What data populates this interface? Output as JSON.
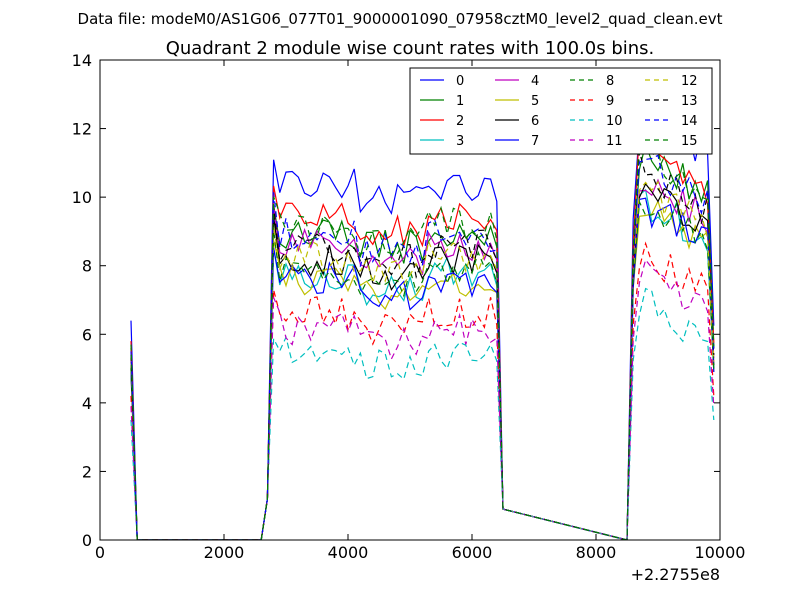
{
  "header": {
    "suptitle": "Data file: modeM0/AS1G06_077T01_9000001090_07958cztM0_level2_quad_clean.evt"
  },
  "chart_data": {
    "type": "line",
    "title": "Quadrant 2 module wise count rates with 100.0s bins.",
    "xlabel": "",
    "ylabel": "",
    "xlim": [
      0,
      10000
    ],
    "ylim": [
      0,
      14
    ],
    "x_offset_label": "+2.2755e8",
    "xticks": [
      0,
      2000,
      4000,
      6000,
      8000,
      10000
    ],
    "xtick_labels": [
      "0",
      "2000",
      "4000",
      "6000",
      "8000",
      "10000"
    ],
    "yticks": [
      0,
      2,
      4,
      6,
      8,
      10,
      12,
      14
    ],
    "ytick_labels": [
      "0",
      "2",
      "4",
      "6",
      "8",
      "10",
      "12",
      "14"
    ],
    "grid": false,
    "legend": {
      "placement": "top-right",
      "columns": 4
    },
    "x": [
      500,
      600,
      2600,
      2700,
      2800,
      2900,
      3000,
      3100,
      3200,
      3300,
      3400,
      3500,
      3600,
      3700,
      3800,
      3900,
      4000,
      4100,
      4200,
      4300,
      4400,
      4500,
      4600,
      4700,
      4800,
      4900,
      5000,
      5100,
      5200,
      5300,
      5400,
      5500,
      5600,
      5700,
      5800,
      5900,
      6000,
      6100,
      6200,
      6300,
      6400,
      6500,
      8500,
      8600,
      8700,
      8800,
      8900,
      9000,
      9100,
      9200,
      9300,
      9400,
      9500,
      9600,
      9700,
      9800,
      9900
    ],
    "series": [
      {
        "name": "0",
        "color": "#0000ff",
        "dash": "solid",
        "plateau1": 10.4,
        "plateau2": 12.5,
        "spike": 6.4
      },
      {
        "name": "1",
        "color": "#008000",
        "dash": "solid",
        "plateau1": 9.0,
        "plateau2": 11.2,
        "spike": 5.6
      },
      {
        "name": "2",
        "color": "#ff0000",
        "dash": "solid",
        "plateau1": 9.5,
        "plateau2": 11.5,
        "spike": 5.8
      },
      {
        "name": "3",
        "color": "#00bfbf",
        "dash": "solid",
        "plateau1": 7.8,
        "plateau2": 10.0,
        "spike": 5.0
      },
      {
        "name": "4",
        "color": "#bf00bf",
        "dash": "solid",
        "plateau1": 8.6,
        "plateau2": 10.6,
        "spike": 5.3
      },
      {
        "name": "5",
        "color": "#bfbf00",
        "dash": "solid",
        "plateau1": 7.6,
        "plateau2": 9.8,
        "spike": 4.8
      },
      {
        "name": "6",
        "color": "#000000",
        "dash": "solid",
        "plateau1": 8.2,
        "plateau2": 10.2,
        "spike": 5.2
      },
      {
        "name": "7",
        "color": "#0000ff",
        "dash": "solid",
        "plateau1": 7.6,
        "plateau2": 9.8,
        "spike": 4.9
      },
      {
        "name": "8",
        "color": "#008000",
        "dash": "dashed",
        "plateau1": 7.9,
        "plateau2": 10.0,
        "spike": 5.0
      },
      {
        "name": "9",
        "color": "#ff0000",
        "dash": "dashed",
        "plateau1": 6.6,
        "plateau2": 8.4,
        "spike": 4.2
      },
      {
        "name": "10",
        "color": "#00bfbf",
        "dash": "dashed",
        "plateau1": 5.5,
        "plateau2": 7.0,
        "spike": 3.5
      },
      {
        "name": "11",
        "color": "#bf00bf",
        "dash": "dashed",
        "plateau1": 6.2,
        "plateau2": 7.8,
        "spike": 3.9
      },
      {
        "name": "12",
        "color": "#bfbf00",
        "dash": "dashed",
        "plateau1": 8.3,
        "plateau2": 10.4,
        "spike": 5.2
      },
      {
        "name": "13",
        "color": "#000000",
        "dash": "dashed",
        "plateau1": 8.6,
        "plateau2": 10.8,
        "spike": 5.4
      },
      {
        "name": "14",
        "color": "#0000ff",
        "dash": "dashed",
        "plateau1": 8.9,
        "plateau2": 11.0,
        "spike": 5.5
      },
      {
        "name": "15",
        "color": "#008000",
        "dash": "dashed",
        "plateau1": 9.2,
        "plateau2": 11.3,
        "spike": 5.7
      }
    ]
  }
}
